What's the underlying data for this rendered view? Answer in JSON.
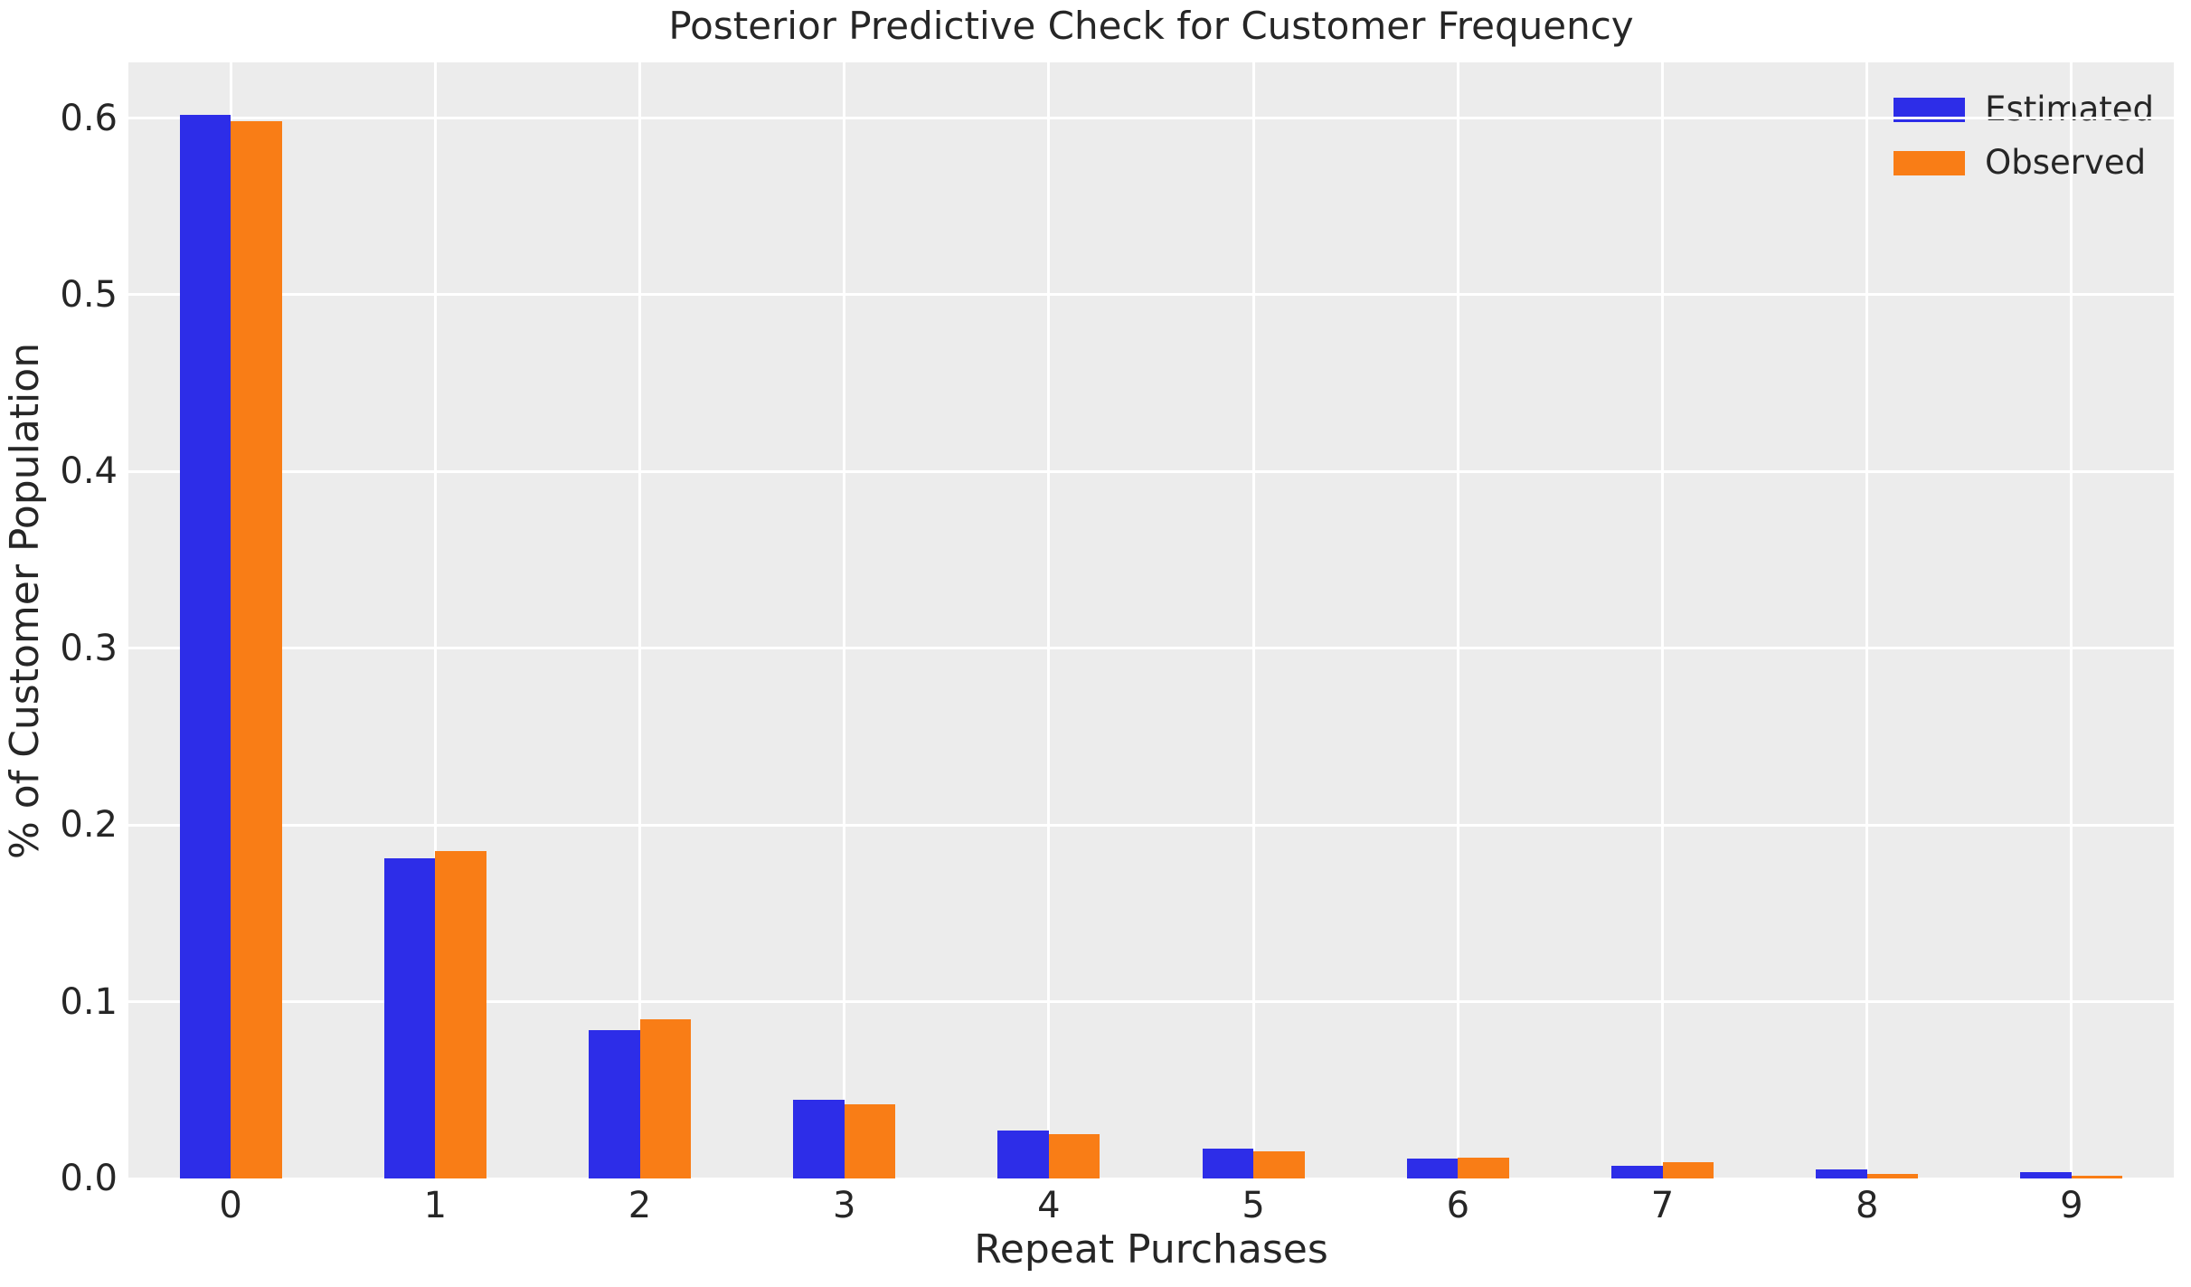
{
  "chart_data": {
    "type": "bar",
    "title": "Posterior Predictive Check for Customer Frequency",
    "xlabel": "Repeat Purchases",
    "ylabel": "% of Customer Population",
    "categories": [
      "0",
      "1",
      "2",
      "3",
      "4",
      "5",
      "6",
      "7",
      "8",
      "9"
    ],
    "series": [
      {
        "name": "Estimated",
        "color": "#2D2DE8",
        "values": [
          0.602,
          0.181,
          0.084,
          0.0447,
          0.0273,
          0.0171,
          0.0113,
          0.0072,
          0.0053,
          0.0034
        ]
      },
      {
        "name": "Observed",
        "color": "#F97D16",
        "values": [
          0.598,
          0.1855,
          0.0902,
          0.0418,
          0.0253,
          0.0152,
          0.0116,
          0.0091,
          0.0026,
          0.0014
        ]
      }
    ],
    "yticks": [
      0.0,
      0.1,
      0.2,
      0.3,
      0.4,
      0.5,
      0.6
    ],
    "ytick_labels": [
      "0.0",
      "0.1",
      "0.2",
      "0.3",
      "0.4",
      "0.5",
      "0.6"
    ],
    "ylim": [
      0,
      0.6315
    ],
    "grid": true,
    "legend_position": "upper right",
    "plot_background": "#ECECEC",
    "grid_color": "#FFFFFF",
    "text_color": "#262626"
  }
}
